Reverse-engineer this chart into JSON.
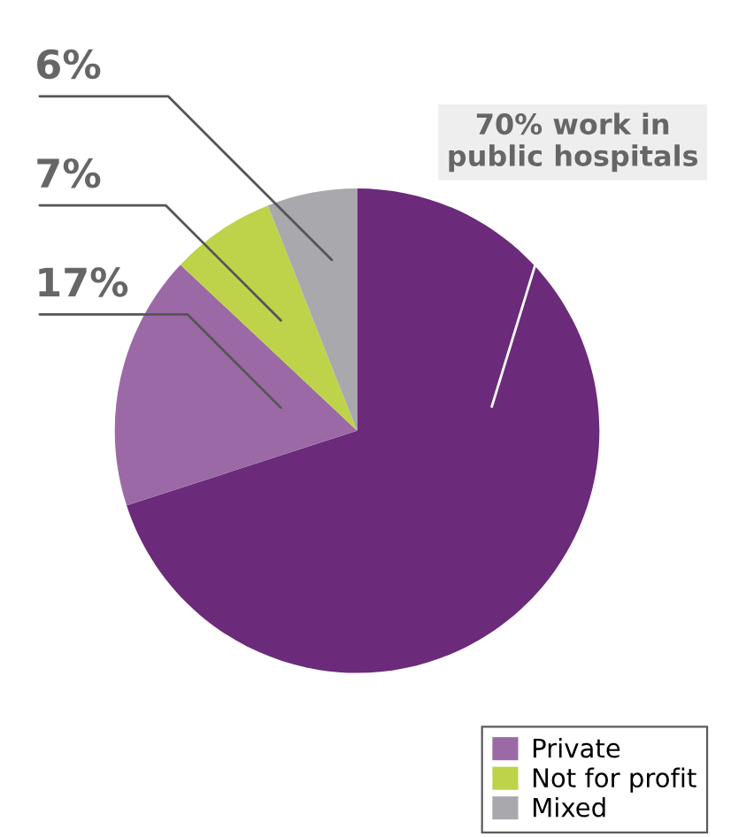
{
  "chart_data": {
    "type": "pie",
    "categories": [
      null,
      "Private",
      "Not for profit",
      "Mixed"
    ],
    "values": [
      70,
      17,
      7,
      6
    ],
    "colors": [
      "#6b2a7a",
      "#9b6aa6",
      "#bfd34a",
      "#a8a8ad"
    ],
    "value_labels": [
      null,
      "17%",
      "7%",
      "6%"
    ],
    "annotations": [
      "70% work in\npublic hospitals"
    ],
    "legend": "bottom right"
  }
}
